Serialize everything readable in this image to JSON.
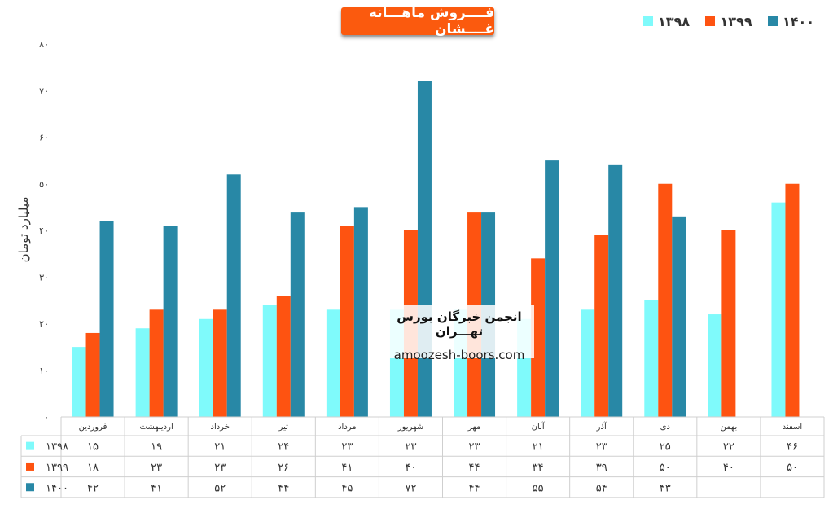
{
  "title": "فــــروش ماهـــانه غــــشان",
  "watermark": {
    "line1": "انجمن خبرگان بورس تهـــران",
    "line2": "amoozesh-boors.com"
  },
  "chart_data": {
    "type": "bar",
    "ylabel": "میلیارد تومان",
    "ylim": [
      0,
      80
    ],
    "yticks": [
      0,
      10,
      20,
      30,
      40,
      50,
      60,
      70,
      80
    ],
    "ytick_labels": [
      "۰",
      "۱۰",
      "۲۰",
      "۳۰",
      "۴۰",
      "۵۰",
      "۶۰",
      "۷۰",
      "۸۰"
    ],
    "legend_position": "top-right",
    "grid": false,
    "categories": [
      "فروردین",
      "اردیبهشت",
      "خرداد",
      "تیر",
      "مرداد",
      "شهریور",
      "مهر",
      "آبان",
      "آذر",
      "دی",
      "بهمن",
      "اسفند"
    ],
    "series": [
      {
        "name": "۱۳۹۸",
        "color": "#7ffafb",
        "values": [
          15,
          19,
          21,
          24,
          23,
          23,
          23,
          21,
          23,
          25,
          22,
          46
        ],
        "labels": [
          "۱۵",
          "۱۹",
          "۲۱",
          "۲۴",
          "۲۳",
          "۲۳",
          "۲۳",
          "۲۱",
          "۲۳",
          "۲۵",
          "۲۲",
          "۴۶"
        ]
      },
      {
        "name": "۱۳۹۹",
        "color": "#fe5311",
        "values": [
          18,
          23,
          23,
          26,
          41,
          40,
          44,
          34,
          39,
          50,
          40,
          50
        ],
        "labels": [
          "۱۸",
          "۲۳",
          "۲۳",
          "۲۶",
          "۴۱",
          "۴۰",
          "۴۴",
          "۳۴",
          "۳۹",
          "۵۰",
          "۴۰",
          "۵۰"
        ]
      },
      {
        "name": "۱۴۰۰",
        "color": "#2888a6",
        "values": [
          42,
          41,
          52,
          44,
          45,
          72,
          44,
          55,
          54,
          43,
          null,
          null
        ],
        "labels": [
          "۴۲",
          "۴۱",
          "۵۲",
          "۴۴",
          "۴۵",
          "۷۲",
          "۴۴",
          "۵۵",
          "۵۴",
          "۴۳",
          "",
          ""
        ]
      }
    ]
  }
}
